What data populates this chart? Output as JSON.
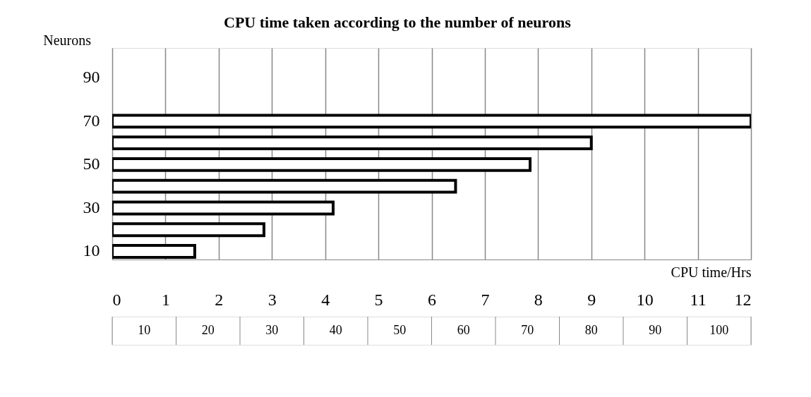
{
  "chart_data": {
    "type": "bar",
    "orientation": "horizontal",
    "title": "CPU time taken according to the number of neurons",
    "xlabel": "CPU time/Hrs",
    "ylabel": "Neurons",
    "categories": [
      null,
      "90",
      null,
      "70",
      null,
      "50",
      null,
      "30",
      null,
      "10"
    ],
    "values": [
      null,
      null,
      null,
      12,
      9.0,
      7.85,
      6.45,
      4.15,
      2.85,
      1.55
    ],
    "xlim": [
      0,
      12
    ],
    "xticks": [
      0,
      1,
      2,
      3,
      4,
      5,
      6,
      7,
      8,
      9,
      10,
      11,
      12
    ],
    "grid": "x",
    "annotations": [
      "10",
      "20",
      "30",
      "40",
      "50",
      "60",
      "70",
      "80",
      "90",
      "100"
    ]
  }
}
